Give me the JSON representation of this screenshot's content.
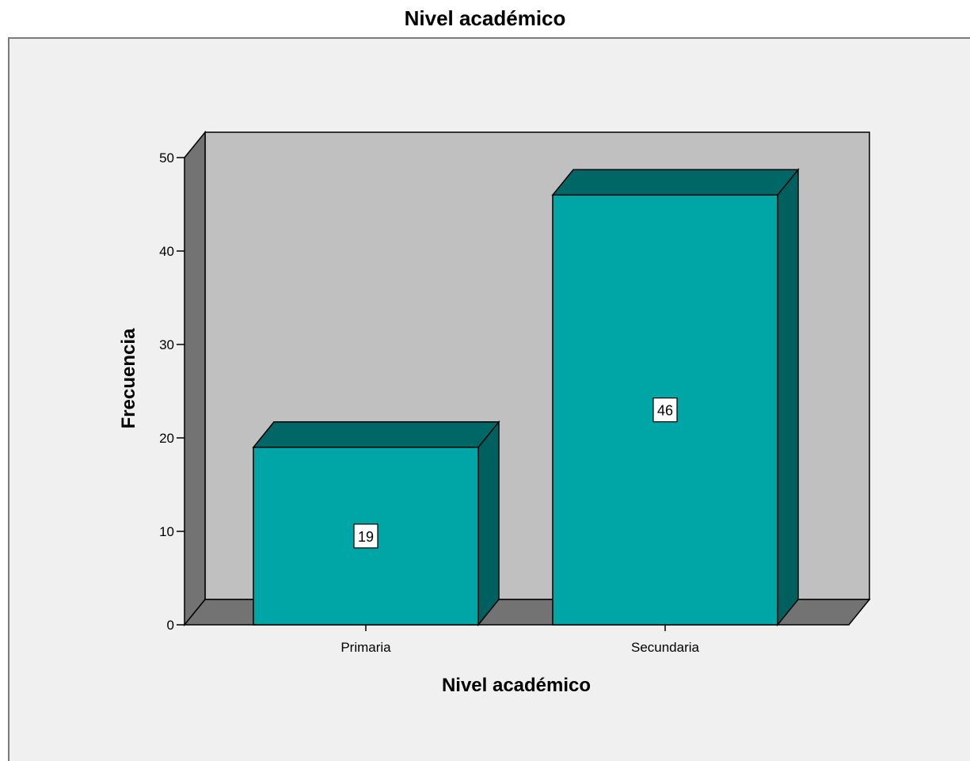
{
  "chart_data": {
    "type": "bar",
    "title": "Nivel académico",
    "xlabel": "Nivel académico",
    "ylabel": "Frecuencia",
    "categories": [
      "Primaria",
      "Secundaria"
    ],
    "values": [
      19,
      46
    ],
    "data_labels": [
      "19",
      "46"
    ],
    "ylim": [
      0,
      50
    ],
    "yticks": [
      0,
      10,
      20,
      30,
      40,
      50
    ],
    "ytick_labels": [
      "0",
      "10",
      "20",
      "30",
      "40",
      "50"
    ],
    "three_d": true,
    "grid": false,
    "legend": "none"
  },
  "colors": {
    "bar_front": "#00a5a5",
    "bar_top": "#006666",
    "bar_side": "#005f5f",
    "floor": "#737373",
    "back_wall": "#c0c0c0",
    "side_wall": "#737373",
    "page_background": "#f0f0f0"
  }
}
